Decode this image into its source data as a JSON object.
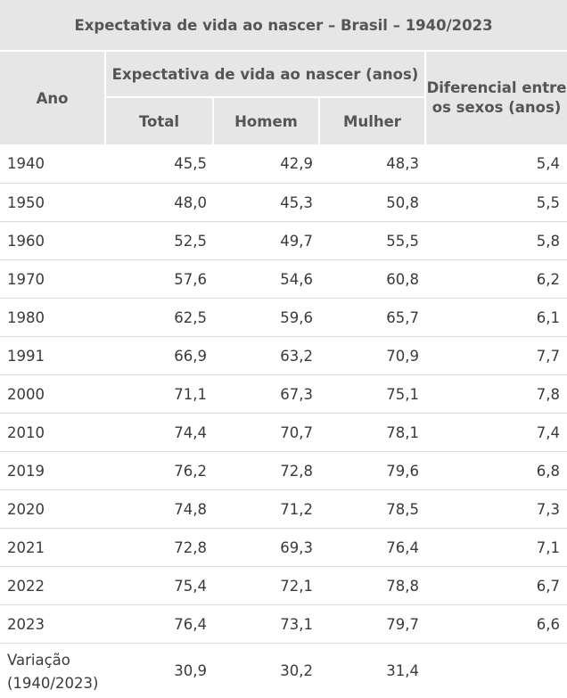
{
  "chart_data": {
    "type": "table",
    "title": "Expectativa de vida ao nascer – Brasil – 1940/2023",
    "group_header": "Expectativa de vida ao nascer (anos)",
    "columns": {
      "year": "Ano",
      "total": "Total",
      "male": "Homem",
      "female": "Mulher",
      "diff": "Diferencial entre os sexos (anos)"
    },
    "rows": [
      {
        "year": "1940",
        "total": "45,5",
        "male": "42,9",
        "female": "48,3",
        "diff": "5,4"
      },
      {
        "year": "1950",
        "total": "48,0",
        "male": "45,3",
        "female": "50,8",
        "diff": "5,5"
      },
      {
        "year": "1960",
        "total": "52,5",
        "male": "49,7",
        "female": "55,5",
        "diff": "5,8"
      },
      {
        "year": "1970",
        "total": "57,6",
        "male": "54,6",
        "female": "60,8",
        "diff": "6,2"
      },
      {
        "year": "1980",
        "total": "62,5",
        "male": "59,6",
        "female": "65,7",
        "diff": "6,1"
      },
      {
        "year": "1991",
        "total": "66,9",
        "male": "63,2",
        "female": "70,9",
        "diff": "7,7"
      },
      {
        "year": "2000",
        "total": "71,1",
        "male": "67,3",
        "female": "75,1",
        "diff": "7,8"
      },
      {
        "year": "2010",
        "total": "74,4",
        "male": "70,7",
        "female": "78,1",
        "diff": "7,4"
      },
      {
        "year": "2019",
        "total": "76,2",
        "male": "72,8",
        "female": "79,6",
        "diff": "6,8"
      },
      {
        "year": "2020",
        "total": "74,8",
        "male": "71,2",
        "female": "78,5",
        "diff": "7,3"
      },
      {
        "year": "2021",
        "total": "72,8",
        "male": "69,3",
        "female": "76,4",
        "diff": "7,1"
      },
      {
        "year": "2022",
        "total": "75,4",
        "male": "72,1",
        "female": "78,8",
        "diff": "6,7"
      },
      {
        "year": "2023",
        "total": "76,4",
        "male": "73,1",
        "female": "79,7",
        "diff": "6,6"
      }
    ],
    "variation": {
      "label": "Variação",
      "period": "(1940/2023)",
      "total": "30,9",
      "male": "30,2",
      "female": "31,4"
    }
  }
}
